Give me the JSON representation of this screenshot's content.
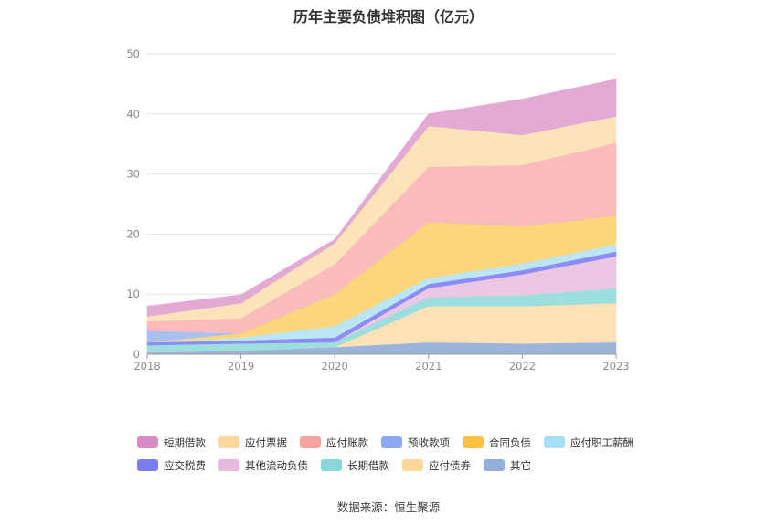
{
  "chart_data": {
    "type": "area",
    "stacked": true,
    "title": "历年主要负债堆积图（亿元）",
    "categories": [
      "2018",
      "2019",
      "2020",
      "2021",
      "2022",
      "2023"
    ],
    "ylim": [
      0,
      50
    ],
    "yticks": [
      0,
      10,
      20,
      30,
      40,
      50
    ],
    "grid": true,
    "legend_position": "bottom",
    "series": [
      {
        "name": "其它",
        "color": "#9db4da",
        "values": [
          0.3,
          0.6,
          1.2,
          2.0,
          1.8,
          2.0
        ]
      },
      {
        "name": "应付债券",
        "color": "#fde1b7",
        "values": [
          0,
          0,
          0,
          6.0,
          6.2,
          6.5
        ]
      },
      {
        "name": "长期借款",
        "color": "#9ddede",
        "values": [
          1.2,
          1.2,
          0.8,
          1.5,
          1.8,
          2.5
        ]
      },
      {
        "name": "其他流动负债",
        "color": "#ecc7e3",
        "values": [
          0,
          0,
          0,
          1.5,
          3.5,
          5.3
        ]
      },
      {
        "name": "应交税费",
        "color": "#8c8cf5",
        "values": [
          0.5,
          0.5,
          0.8,
          0.7,
          0.7,
          0.8
        ]
      },
      {
        "name": "应付职工薪酬",
        "color": "#bde6f5",
        "values": [
          0,
          0.5,
          1.9,
          1.0,
          1.1,
          1.2
        ]
      },
      {
        "name": "合同负债",
        "color": "#fdd57a",
        "values": [
          0,
          0.7,
          5.3,
          9.3,
          6.2,
          4.8
        ]
      },
      {
        "name": "预收款项",
        "color": "#a9c0f5",
        "values": [
          1.9,
          0,
          0,
          0,
          0,
          0
        ]
      },
      {
        "name": "应付账款",
        "color": "#f9bcba",
        "values": [
          1.6,
          2.5,
          5.0,
          9.2,
          10.2,
          12.1
        ]
      },
      {
        "name": "应付票据",
        "color": "#fde3b9",
        "values": [
          0.8,
          2.5,
          3.5,
          6.8,
          5.0,
          4.4
        ]
      },
      {
        "name": "短期借款",
        "color": "#e3aad4",
        "values": [
          1.7,
          1.4,
          0.6,
          2.0,
          6.0,
          6.2
        ]
      }
    ],
    "legend_order": [
      "短期借款",
      "应付票据",
      "应付账款",
      "预收款项",
      "合同负债",
      "应付职工薪酬",
      "应交税费",
      "其他流动负债",
      "长期借款",
      "应付债券",
      "其它"
    ],
    "legend_colors": {
      "短期借款": "#d98bc4",
      "应付票据": "#fdd89a",
      "应付账款": "#f4a39f",
      "预收款项": "#8aa9f2",
      "合同负债": "#fcc23f",
      "应付职工薪酬": "#a6e0f7",
      "应交税费": "#7b7cf0",
      "其他流动负债": "#e8b8de",
      "长期借款": "#88d6d6",
      "应付债券": "#fdd89a",
      "其它": "#93aedb"
    }
  },
  "source_text": "数据来源：恒生聚源"
}
